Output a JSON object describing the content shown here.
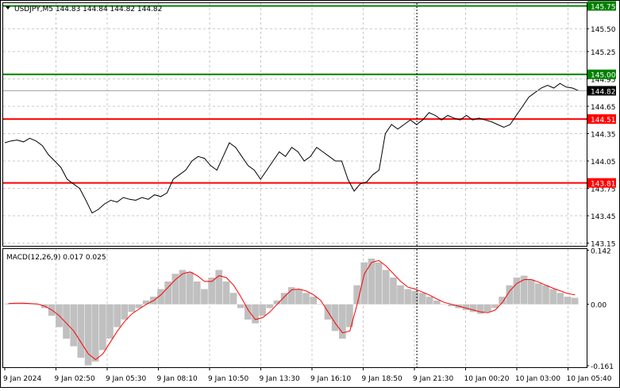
{
  "header": {
    "symbol_line": "USDJPY,M5  144.83  144.84  144.82  144.82",
    "indicator_label": "MACD(12,26,9) 0.017 0.025"
  },
  "colors": {
    "price_line": "#000000",
    "grid": "#c8c8c8",
    "green_level": "#008000",
    "red_level": "#ff0000",
    "macd_hist": "#c0c0c0",
    "macd_signal": "#ff0000",
    "current_price_bg": "#000000"
  },
  "chart_data": [
    {
      "type": "line",
      "title": "USDJPY,M5",
      "ohlc_readout": [
        144.83,
        144.84,
        144.82,
        144.82
      ],
      "ylim": [
        143.12,
        145.78
      ],
      "y_ticks": [
        "145.75",
        "145.50",
        "145.25",
        "144.95",
        "144.65",
        "144.35",
        "144.05",
        "143.75",
        "143.45",
        "143.15"
      ],
      "y_tick_values": [
        145.75,
        145.5,
        145.25,
        144.95,
        144.65,
        144.35,
        144.05,
        143.75,
        143.45,
        143.15
      ],
      "x_ticks": [
        "9 Jan 2024",
        "9 Jan 02:50",
        "9 Jan 05:30",
        "9 Jan 08:10",
        "9 Jan 10:50",
        "9 Jan 13:30",
        "9 Jan 16:10",
        "9 Jan 18:50",
        "9 Jan 21:30",
        "10 Jan 00:20",
        "10 Jan 03:00",
        "10 Jan 05:40"
      ],
      "levels": [
        {
          "label": "145.75",
          "value": 145.75,
          "color": "green"
        },
        {
          "label": "145.00",
          "value": 145.0,
          "color": "green"
        },
        {
          "label": "144.51",
          "value": 144.51,
          "color": "red"
        },
        {
          "label": "143.81",
          "value": 143.81,
          "color": "red"
        }
      ],
      "current_price": {
        "label": "144.82",
        "value": 144.82
      },
      "separator_x_index": 0.709,
      "price_series": [
        144.25,
        144.27,
        144.28,
        144.26,
        144.3,
        144.27,
        144.22,
        144.12,
        144.05,
        143.98,
        143.85,
        143.8,
        143.75,
        143.62,
        143.48,
        143.52,
        143.58,
        143.62,
        143.6,
        143.65,
        143.63,
        143.62,
        143.65,
        143.63,
        143.68,
        143.66,
        143.7,
        143.85,
        143.9,
        143.95,
        144.05,
        144.1,
        144.08,
        144.0,
        143.95,
        144.1,
        144.25,
        144.2,
        144.1,
        144.0,
        143.95,
        143.85,
        143.95,
        144.05,
        144.15,
        144.1,
        144.2,
        144.15,
        144.05,
        144.1,
        144.2,
        144.15,
        144.1,
        144.05,
        144.05,
        143.85,
        143.72,
        143.8,
        143.82,
        143.9,
        143.95,
        144.35,
        144.45,
        144.4,
        144.45,
        144.5,
        144.45,
        144.5,
        144.58,
        144.55,
        144.5,
        144.55,
        144.52,
        144.5,
        144.55,
        144.5,
        144.52,
        144.5,
        144.48,
        144.45,
        144.42,
        144.45,
        144.55,
        144.65,
        144.75,
        144.8,
        144.85,
        144.88,
        144.85,
        144.9,
        144.86,
        144.85,
        144.82
      ],
      "series": [
        {
          "name": "USDJPY",
          "values": []
        }
      ]
    },
    {
      "type": "bar",
      "title": "MACD(12,26,9)",
      "readout": [
        0.017,
        0.025
      ],
      "ylim": [
        -0.165,
        0.145
      ],
      "y_ticks": [
        "0.142",
        "0.00",
        "-0.161"
      ],
      "y_tick_values": [
        0.142,
        0.0,
        -0.161
      ],
      "histogram": [
        0.002,
        0.003,
        0.004,
        0.002,
        0.0,
        -0.01,
        -0.03,
        -0.06,
        -0.09,
        -0.11,
        -0.14,
        -0.16,
        -0.15,
        -0.12,
        -0.09,
        -0.06,
        -0.04,
        -0.02,
        -0.01,
        0.01,
        0.02,
        0.04,
        0.06,
        0.08,
        0.09,
        0.085,
        0.06,
        0.04,
        0.07,
        0.09,
        0.06,
        0.03,
        -0.01,
        -0.04,
        -0.05,
        -0.03,
        -0.01,
        0.01,
        0.03,
        0.045,
        0.04,
        0.03,
        0.02,
        0.0,
        -0.04,
        -0.07,
        -0.09,
        -0.06,
        0.05,
        0.11,
        0.12,
        0.11,
        0.09,
        0.07,
        0.05,
        0.04,
        0.035,
        0.03,
        0.02,
        0.01,
        0.0,
        -0.005,
        -0.01,
        -0.015,
        -0.02,
        -0.025,
        -0.02,
        -0.01,
        0.02,
        0.05,
        0.07,
        0.075,
        0.065,
        0.055,
        0.05,
        0.04,
        0.03,
        0.02,
        0.017
      ],
      "signal": [
        0.002,
        0.003,
        0.003,
        0.002,
        0.001,
        -0.005,
        -0.015,
        -0.03,
        -0.05,
        -0.07,
        -0.1,
        -0.13,
        -0.145,
        -0.13,
        -0.1,
        -0.07,
        -0.045,
        -0.025,
        -0.012,
        0.0,
        0.01,
        0.025,
        0.045,
        0.065,
        0.08,
        0.085,
        0.075,
        0.06,
        0.06,
        0.075,
        0.07,
        0.05,
        0.02,
        -0.015,
        -0.04,
        -0.035,
        -0.02,
        0.0,
        0.02,
        0.038,
        0.04,
        0.035,
        0.025,
        0.01,
        -0.02,
        -0.05,
        -0.075,
        -0.07,
        0.0,
        0.08,
        0.11,
        0.115,
        0.1,
        0.08,
        0.06,
        0.045,
        0.04,
        0.032,
        0.024,
        0.014,
        0.005,
        0.0,
        -0.005,
        -0.01,
        -0.015,
        -0.02,
        -0.022,
        -0.015,
        0.005,
        0.035,
        0.055,
        0.065,
        0.065,
        0.058,
        0.05,
        0.042,
        0.035,
        0.028,
        0.025
      ]
    }
  ]
}
